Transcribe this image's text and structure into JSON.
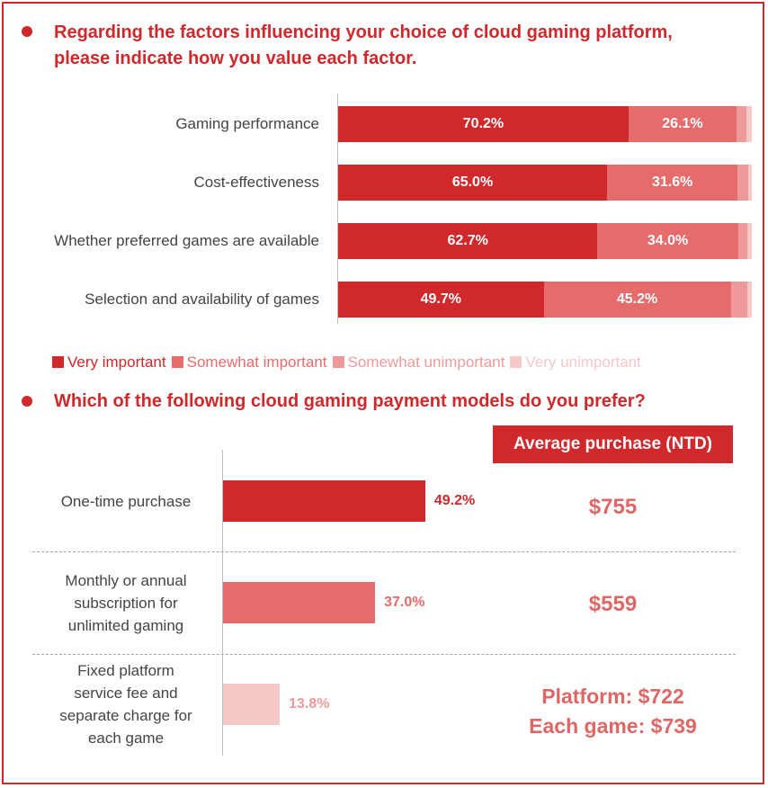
{
  "q1": {
    "heading_line1": "Regarding the factors influencing your choice of cloud gaming platform,",
    "heading_line2": "please indicate how you value each factor."
  },
  "q2": {
    "heading": "Which of the following cloud gaming payment models do you prefer?",
    "avg_header": "Average purchase (NTD)",
    "averages": [
      {
        "line1": "$755"
      },
      {
        "line1": "$559"
      },
      {
        "line1": "Platform: $722",
        "line2": "Each game: $739"
      }
    ]
  },
  "colors": {
    "very_important": "#d0282b",
    "somewhat_important": "#e66b6b",
    "somewhat_unimportant": "#ef9a9a",
    "very_unimportant": "#f6c9c9",
    "accent": "#d0282b",
    "average_text": "#e06666"
  },
  "chart_data": [
    {
      "type": "bar",
      "stacked": true,
      "orientation": "horizontal",
      "categories": [
        "Gaming performance",
        "Cost-effectiveness",
        "Whether preferred games are available",
        "Selection and availability of games"
      ],
      "series": [
        {
          "name": "Very important",
          "values": [
            70.2,
            65.0,
            62.7,
            49.7
          ],
          "labels": [
            "70.2%",
            "65.0%",
            "62.7%",
            "49.7%"
          ]
        },
        {
          "name": "Somewhat important",
          "values": [
            26.1,
            31.6,
            34.0,
            45.2
          ],
          "labels": [
            "26.1%",
            "31.6%",
            "34.0%",
            "45.2%"
          ]
        },
        {
          "name": "Somewhat unimportant",
          "values": [
            2.5,
            2.5,
            2.3,
            4.0
          ]
        },
        {
          "name": "Very unimportant",
          "values": [
            1.2,
            0.9,
            1.0,
            1.1
          ]
        }
      ],
      "xlim": [
        0,
        100
      ],
      "legend": "bottom"
    },
    {
      "type": "bar",
      "orientation": "horizontal",
      "categories": [
        [
          "One-time purchase"
        ],
        [
          "Monthly or annual",
          "subscription for",
          "unlimited gaming"
        ],
        [
          "Fixed platform",
          "service fee and",
          "separate charge for",
          "each game"
        ]
      ],
      "values": [
        49.2,
        37.0,
        13.8
      ],
      "labels": [
        "49.2%",
        "37.0%",
        "13.8%"
      ],
      "xlim": [
        0,
        100
      ]
    }
  ]
}
